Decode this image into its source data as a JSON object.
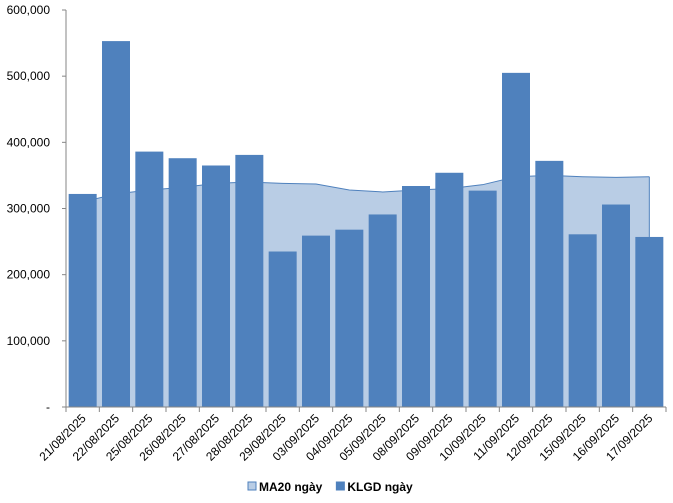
{
  "chart_data": {
    "type": "bar",
    "categories": [
      "21/08/2025",
      "22/08/2025",
      "25/08/2025",
      "26/08/2025",
      "27/08/2025",
      "28/08/2025",
      "29/08/2025",
      "03/09/2025",
      "04/09/2025",
      "05/09/2025",
      "08/09/2025",
      "09/09/2025",
      "10/09/2025",
      "11/09/2025",
      "12/09/2025",
      "15/09/2025",
      "16/09/2025",
      "17/09/2025"
    ],
    "series": [
      {
        "name": "KLGD ngày",
        "type": "bar",
        "color": "#4f81bd",
        "values": [
          322000,
          553000,
          386000,
          376000,
          365000,
          381000,
          235000,
          259000,
          268000,
          291000,
          334000,
          354000,
          327000,
          505000,
          372000,
          261000,
          306000,
          257000
        ]
      },
      {
        "name": "MA20 ngày",
        "type": "area",
        "color": "#b9cde5",
        "line_color": "#4f81bd",
        "values": [
          310000,
          322000,
          328000,
          332000,
          338000,
          340000,
          338000,
          337000,
          328000,
          325000,
          328000,
          330000,
          336000,
          348000,
          350000,
          348000,
          347000,
          348000
        ]
      }
    ],
    "ylim": [
      0,
      600000
    ],
    "yticks": [
      {
        "value": 0,
        "label": "-"
      },
      {
        "value": 100000,
        "label": "100,000"
      },
      {
        "value": 200000,
        "label": "200,000"
      },
      {
        "value": 300000,
        "label": "300,000"
      },
      {
        "value": 400000,
        "label": "400,000"
      },
      {
        "value": 500000,
        "label": "500,000"
      },
      {
        "value": 600000,
        "label": "600,000"
      }
    ],
    "grid": false,
    "legend_position": "bottom",
    "legend": [
      {
        "label": "MA20 ngày",
        "color": "#b9cde5",
        "border": "#4f81bd"
      },
      {
        "label": "KLGD ngày",
        "color": "#4f81bd",
        "border": "#4f81bd"
      }
    ]
  }
}
